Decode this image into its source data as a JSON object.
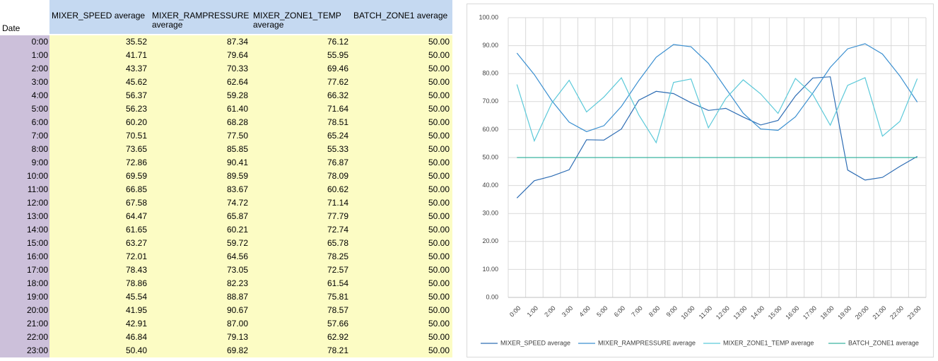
{
  "table": {
    "date_header": "Date",
    "columns": [
      "MIXER_SPEED average",
      "MIXER_RAMPRESSURE average",
      "MIXER_ZONE1_TEMP average",
      "BATCH_ZONE1 average"
    ],
    "rows": [
      [
        "0:00",
        "35.52",
        "87.34",
        "76.12",
        "50.00"
      ],
      [
        "1:00",
        "41.71",
        "79.64",
        "55.95",
        "50.00"
      ],
      [
        "2:00",
        "43.37",
        "70.33",
        "69.46",
        "50.00"
      ],
      [
        "3:00",
        "45.62",
        "62.64",
        "77.62",
        "50.00"
      ],
      [
        "4:00",
        "56.37",
        "59.28",
        "66.32",
        "50.00"
      ],
      [
        "5:00",
        "56.23",
        "61.40",
        "71.64",
        "50.00"
      ],
      [
        "6:00",
        "60.20",
        "68.28",
        "78.51",
        "50.00"
      ],
      [
        "7:00",
        "70.51",
        "77.50",
        "65.24",
        "50.00"
      ],
      [
        "8:00",
        "73.65",
        "85.85",
        "55.33",
        "50.00"
      ],
      [
        "9:00",
        "72.86",
        "90.41",
        "76.87",
        "50.00"
      ],
      [
        "10:00",
        "69.59",
        "89.59",
        "78.09",
        "50.00"
      ],
      [
        "11:00",
        "66.85",
        "83.67",
        "60.62",
        "50.00"
      ],
      [
        "12:00",
        "67.58",
        "74.72",
        "71.14",
        "50.00"
      ],
      [
        "13:00",
        "64.47",
        "65.87",
        "77.79",
        "50.00"
      ],
      [
        "14:00",
        "61.65",
        "60.21",
        "72.74",
        "50.00"
      ],
      [
        "15:00",
        "63.27",
        "59.72",
        "65.78",
        "50.00"
      ],
      [
        "16:00",
        "72.01",
        "64.56",
        "78.25",
        "50.00"
      ],
      [
        "17:00",
        "78.43",
        "73.05",
        "72.57",
        "50.00"
      ],
      [
        "18:00",
        "78.86",
        "82.23",
        "61.54",
        "50.00"
      ],
      [
        "19:00",
        "45.54",
        "88.87",
        "75.81",
        "50.00"
      ],
      [
        "20:00",
        "41.95",
        "90.67",
        "78.57",
        "50.00"
      ],
      [
        "21:00",
        "42.91",
        "87.00",
        "57.66",
        "50.00"
      ],
      [
        "22:00",
        "46.84",
        "79.13",
        "62.92",
        "50.00"
      ],
      [
        "23:00",
        "50.40",
        "69.82",
        "78.21",
        "50.00"
      ]
    ]
  },
  "chart_data": {
    "type": "line",
    "categories": [
      "0:00",
      "1:00",
      "2:00",
      "3:00",
      "4:00",
      "5:00",
      "6:00",
      "7:00",
      "8:00",
      "9:00",
      "10:00",
      "11:00",
      "12:00",
      "13:00",
      "14:00",
      "15:00",
      "16:00",
      "17:00",
      "18:00",
      "19:00",
      "20:00",
      "21:00",
      "22:00",
      "23:00"
    ],
    "series": [
      {
        "name": "MIXER_SPEED average",
        "color": "#2e6db4",
        "values": [
          35.52,
          41.71,
          43.37,
          45.62,
          56.37,
          56.23,
          60.2,
          70.51,
          73.65,
          72.86,
          69.59,
          66.85,
          67.58,
          64.47,
          61.65,
          63.27,
          72.01,
          78.43,
          78.86,
          45.54,
          41.95,
          42.91,
          46.84,
          50.4
        ]
      },
      {
        "name": "MIXER_RAMPRESSURE average",
        "color": "#3a8fd0",
        "values": [
          87.34,
          79.64,
          70.33,
          62.64,
          59.28,
          61.4,
          68.28,
          77.5,
          85.85,
          90.41,
          89.59,
          83.67,
          74.72,
          65.87,
          60.21,
          59.72,
          64.56,
          73.05,
          82.23,
          88.87,
          90.67,
          87.0,
          79.13,
          69.82
        ]
      },
      {
        "name": "MIXER_ZONE1_TEMP average",
        "color": "#5bc9d9",
        "values": [
          76.12,
          55.95,
          69.46,
          77.62,
          66.32,
          71.64,
          78.51,
          65.24,
          55.33,
          76.87,
          78.09,
          60.62,
          71.14,
          77.79,
          72.74,
          65.78,
          78.25,
          72.57,
          61.54,
          75.81,
          78.57,
          57.66,
          62.92,
          78.21
        ]
      },
      {
        "name": "BATCH_ZONE1 average",
        "color": "#3bb3a0",
        "values": [
          50,
          50,
          50,
          50,
          50,
          50,
          50,
          50,
          50,
          50,
          50,
          50,
          50,
          50,
          50,
          50,
          50,
          50,
          50,
          50,
          50,
          50,
          50,
          50
        ]
      }
    ],
    "ylim": [
      0,
      100
    ],
    "yticks": [
      {
        "value": 0,
        "label": "0.00"
      },
      {
        "value": 10,
        "label": "10.00"
      },
      {
        "value": 20,
        "label": "20.00"
      },
      {
        "value": 30,
        "label": "30.00"
      },
      {
        "value": 40,
        "label": "40.00"
      },
      {
        "value": 50,
        "label": "50.00"
      },
      {
        "value": 60,
        "label": "60.00"
      },
      {
        "value": 70,
        "label": "70.00"
      },
      {
        "value": 80,
        "label": "80.00"
      },
      {
        "value": 90,
        "label": "90.00"
      },
      {
        "value": 100,
        "label": "100.00"
      }
    ],
    "grid": true,
    "legend": "bottom"
  }
}
